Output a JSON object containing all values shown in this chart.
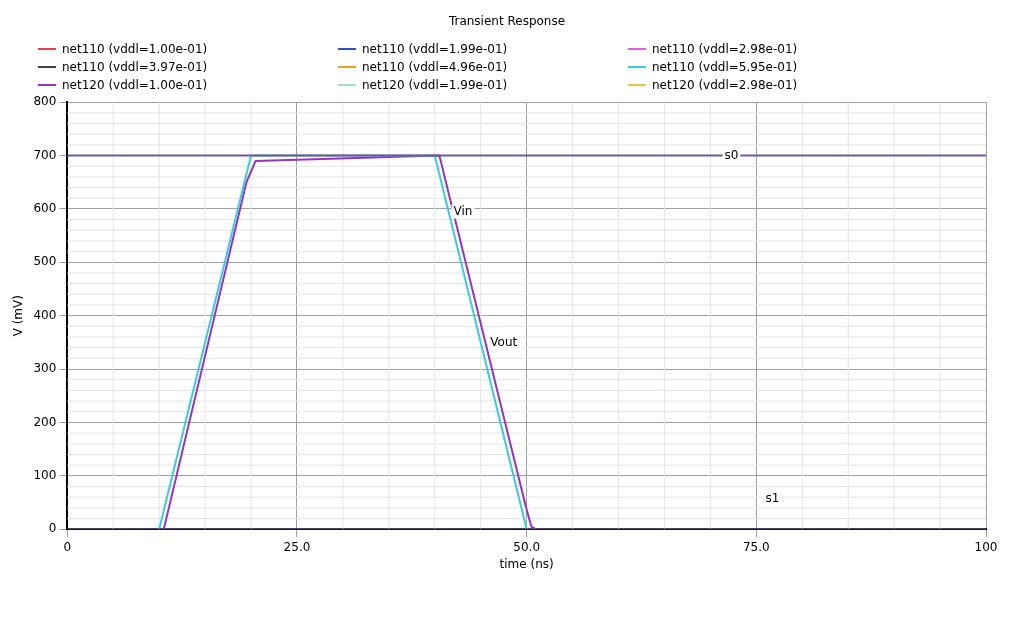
{
  "chart_data": {
    "type": "line",
    "title": "Transient Response",
    "xlabel": "time (ns)",
    "ylabel": "V (mV)",
    "xlim": [
      0,
      100
    ],
    "xticks": [
      0,
      {
        "value": 25,
        "label": "25.0"
      },
      {
        "value": 50,
        "label": "50.0"
      },
      {
        "value": 75,
        "label": "75.0"
      },
      100
    ],
    "ylim": [
      0,
      800
    ],
    "yticks": [
      0,
      100,
      200,
      300,
      400,
      500,
      600,
      700,
      800
    ],
    "grid": true,
    "legend": "top",
    "series": [
      {
        "color": "#6e5a8e",
        "x": [
          0,
          100
        ],
        "values": [
          700,
          700
        ]
      },
      {
        "color": "#6e5a8e",
        "x": [
          0,
          100
        ],
        "values": [
          0,
          0
        ]
      },
      {
        "name": "net110 (vddl=1.00e-01)",
        "color": "#e84040",
        "values": [
          null
        ]
      },
      {
        "name": "net110 (vddl=1.99e-01)",
        "color": "#3050d0",
        "values": [
          null
        ]
      },
      {
        "name": "net110 (vddl=2.98e-01)",
        "color": "#e060e0",
        "values": [
          null
        ]
      },
      {
        "name": "net110 (vddl=3.97e-01)",
        "color": "#404040",
        "values": [
          null
        ]
      },
      {
        "name": "net110 (vddl=4.96e-01)",
        "color": "#f0a020",
        "values": [
          null
        ]
      },
      {
        "name": "net110 (vddl=5.95e-01)",
        "color": "#30d0e0",
        "x": [
          10,
          20,
          40,
          50
        ],
        "values": [
          0,
          700,
          700,
          0
        ]
      },
      {
        "name": "net120 (vddl=1.00e-01)",
        "color": "#9a30c8",
        "x": [
          10.5,
          19.5,
          20.5,
          40.5,
          49.8,
          50.5,
          51
        ],
        "values": [
          0,
          650,
          690,
          700,
          50,
          5,
          0
        ]
      },
      {
        "name": "net120 (vddl=1.99e-01)",
        "color": "#a0e0d0",
        "values": [
          null
        ]
      },
      {
        "name": "net120 (vddl=2.98e-01)",
        "color": "#e8c840",
        "values": [
          null
        ]
      }
    ],
    "annotations": [
      {
        "text": "s0",
        "x": 71,
        "y": 700
      },
      {
        "text": "Vin",
        "x": 41.5,
        "y": 595
      },
      {
        "text": "Vout",
        "x": 45.5,
        "y": 350
      },
      {
        "text": "s1",
        "x": 76,
        "y": 0
      }
    ]
  }
}
